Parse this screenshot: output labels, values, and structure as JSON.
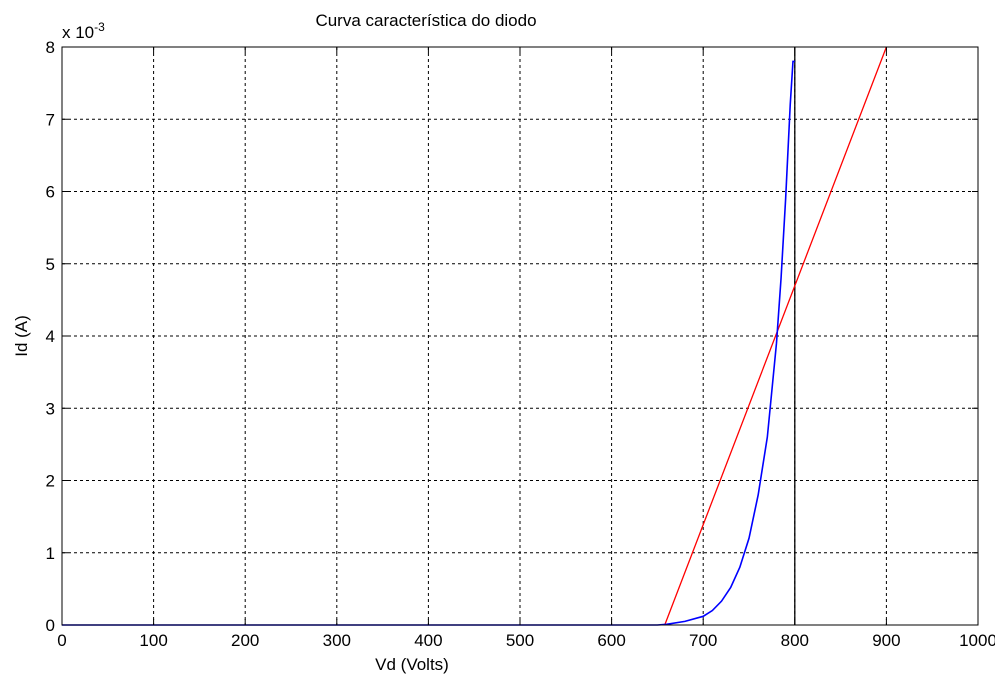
{
  "chart_data": {
    "type": "line",
    "title": "Curva característica do diodo",
    "xlabel": "Vd (Volts)",
    "ylabel": "Id (A)",
    "y_exponent_prefix": "x 10",
    "y_exponent_power": "-3",
    "xlim": [
      0,
      1000
    ],
    "ylim": [
      0,
      8
    ],
    "grid": true,
    "x_ticks": [
      0,
      100,
      200,
      300,
      400,
      500,
      600,
      700,
      800,
      900,
      1000
    ],
    "x_tick_labels": [
      "0",
      "100",
      "200",
      "300",
      "400",
      "500",
      "600",
      "700",
      "800",
      "900",
      "1000"
    ],
    "y_ticks": [
      0,
      1,
      2,
      3,
      4,
      5,
      6,
      7,
      8
    ],
    "y_tick_labels": [
      "0",
      "1",
      "2",
      "3",
      "4",
      "5",
      "6",
      "7",
      "8"
    ],
    "series": [
      {
        "color": "#0000ff",
        "x": [
          0,
          100,
          200,
          300,
          400,
          500,
          600,
          650,
          660,
          680,
          700,
          710,
          720,
          730,
          740,
          750,
          760,
          770,
          780,
          785,
          790,
          795,
          798,
          800
        ],
        "y": [
          0,
          0,
          0,
          0,
          0,
          0,
          0,
          0,
          0.01,
          0.05,
          0.12,
          0.2,
          0.33,
          0.52,
          0.8,
          1.2,
          1.8,
          2.6,
          3.9,
          4.8,
          5.9,
          7.2,
          7.8,
          7.8
        ]
      },
      {
        "color": "#ff0000",
        "x": [
          658,
          900
        ],
        "y": [
          0,
          8
        ]
      },
      {
        "color": "#000000",
        "x": [
          800,
          800
        ],
        "y": [
          0,
          8
        ]
      }
    ]
  }
}
